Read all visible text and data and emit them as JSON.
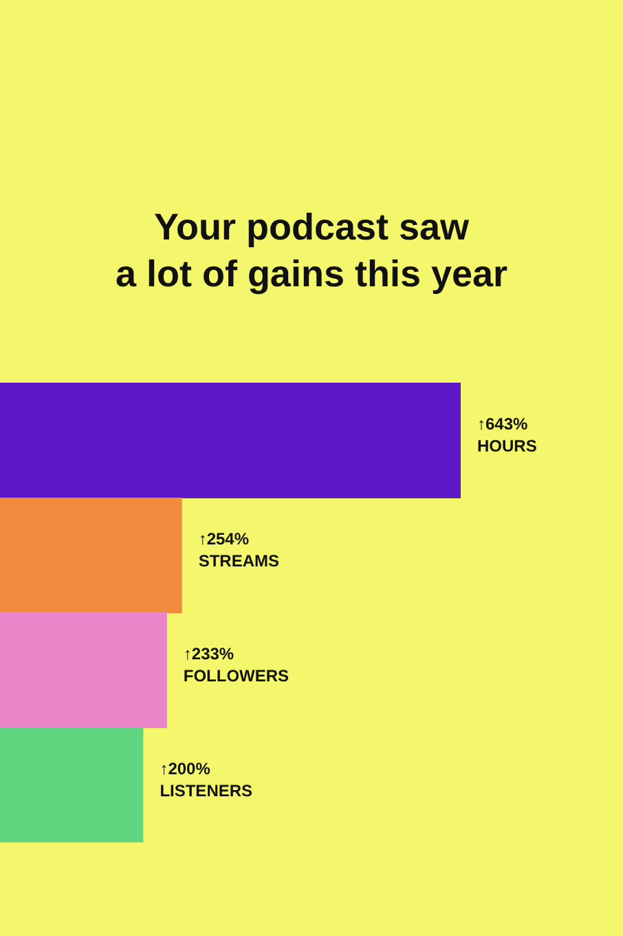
{
  "chart_data": {
    "type": "bar",
    "orientation": "horizontal",
    "title": "Your podcast saw\na lot of gains this year",
    "categories": [
      "HOURS",
      "STREAMS",
      "FOLLOWERS",
      "LISTENERS"
    ],
    "values": [
      643,
      254,
      233,
      200
    ],
    "colors": [
      "#5d17c9",
      "#f08a3c",
      "#e985c8",
      "#5fd680"
    ],
    "value_labels": [
      "↑643%",
      "↑254%",
      "↑233%",
      "↑200%"
    ],
    "tick_labels": false,
    "grid": false,
    "legend": false
  }
}
